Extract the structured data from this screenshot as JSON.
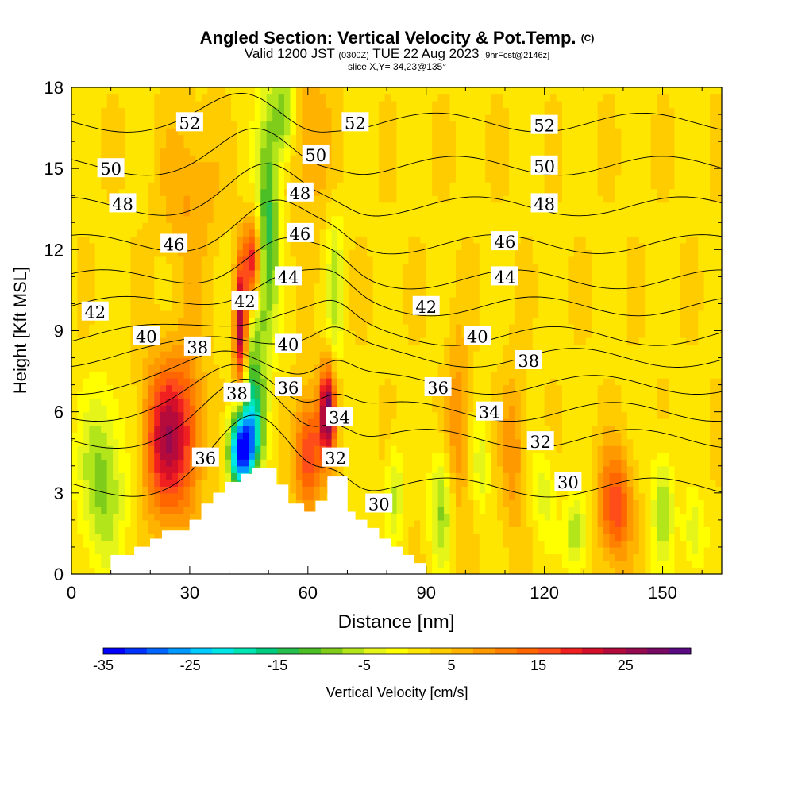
{
  "header": {
    "title_main": "Angled Section: Vertical Velocity & Pot.Temp.",
    "title_mark": "(C)",
    "subtitle_a": "Valid 1200 JST",
    "subtitle_b": "(0300Z)",
    "subtitle_c": "TUE 22 Aug 2023",
    "subtitle_d": "[9hrFcst@2146z]",
    "slice": "slice X,Y= 34,23@135°"
  },
  "chart_data": {
    "type": "heatmap",
    "xlabel": "Distance [nm]",
    "ylabel": "Height [Kft MSL]",
    "xlim": [
      0,
      165
    ],
    "ylim": [
      0,
      18
    ],
    "x_ticks": [
      0,
      30,
      60,
      90,
      120,
      150
    ],
    "y_ticks": [
      0,
      3,
      6,
      9,
      12,
      15,
      18
    ],
    "grid": false,
    "colorbar": {
      "label": "Vertical Velocity [cm/s]",
      "min": -35,
      "max": 32.5,
      "step": 2.5,
      "tick_values": [
        -35,
        -25,
        -15,
        -5,
        5,
        15,
        25
      ],
      "colors": [
        "#0000ff",
        "#0033ff",
        "#0066ff",
        "#0099ff",
        "#00ccff",
        "#00e5e5",
        "#00e5b3",
        "#00cc80",
        "#26bf4d",
        "#4dbf26",
        "#80cc1a",
        "#b3e61a",
        "#e6f519",
        "#ffff00",
        "#ffe600",
        "#ffcc00",
        "#ffb300",
        "#ff9900",
        "#ff8000",
        "#ff6600",
        "#ff4d1a",
        "#f02020",
        "#d40f2a",
        "#b40a3c",
        "#960a50",
        "#780a66",
        "#5a0a82"
      ]
    },
    "terrain_profile": [
      [
        0,
        0
      ],
      [
        10,
        0
      ],
      [
        10,
        0.7
      ],
      [
        16,
        0.7
      ],
      [
        16,
        1.0
      ],
      [
        20,
        1.0
      ],
      [
        20,
        1.3
      ],
      [
        23,
        1.3
      ],
      [
        23,
        1.6
      ],
      [
        30,
        1.6
      ],
      [
        30,
        2.0
      ],
      [
        33,
        2.0
      ],
      [
        33,
        2.6
      ],
      [
        36,
        2.6
      ],
      [
        36,
        3.0
      ],
      [
        39,
        3.0
      ],
      [
        39,
        3.4
      ],
      [
        43,
        3.4
      ],
      [
        43,
        3.7
      ],
      [
        46,
        3.7
      ],
      [
        46,
        3.9
      ],
      [
        52,
        3.9
      ],
      [
        52,
        3.3
      ],
      [
        55,
        3.3
      ],
      [
        55,
        2.6
      ],
      [
        59,
        2.6
      ],
      [
        59,
        2.3
      ],
      [
        62,
        2.3
      ],
      [
        62,
        2.7
      ],
      [
        65,
        2.7
      ],
      [
        65,
        3.6
      ],
      [
        70,
        3.6
      ],
      [
        70,
        2.3
      ],
      [
        72,
        2.3
      ],
      [
        72,
        2.0
      ],
      [
        75,
        2.0
      ],
      [
        75,
        1.7
      ],
      [
        78,
        1.7
      ],
      [
        78,
        1.3
      ],
      [
        81,
        1.3
      ],
      [
        81,
        1.0
      ],
      [
        84,
        1.0
      ],
      [
        84,
        0.7
      ],
      [
        87,
        0.7
      ],
      [
        87,
        0.4
      ],
      [
        90,
        0.4
      ],
      [
        90,
        0
      ]
    ],
    "velocity_background": 2,
    "velocity_features": [
      {
        "x": 8,
        "y": 3.5,
        "value": -11,
        "sx": 4,
        "sy": 2.2
      },
      {
        "x": 24,
        "y": 5,
        "value": 21,
        "sx": 4,
        "sy": 2.0
      },
      {
        "x": 30,
        "y": 5.5,
        "value": 8,
        "sx": 3,
        "sy": 2.5
      },
      {
        "x": 43,
        "y": 4.5,
        "value": -32,
        "sx": 2.2,
        "sy": 1.0
      },
      {
        "x": 46,
        "y": 5.5,
        "value": -14,
        "sx": 2.5,
        "sy": 1.2
      },
      {
        "x": 43,
        "y": 9.2,
        "value": 27,
        "sx": 1.2,
        "sy": 1.8
      },
      {
        "x": 46,
        "y": 11.5,
        "value": 21,
        "sx": 1.5,
        "sy": 1.2
      },
      {
        "x": 46,
        "y": 8.5,
        "value": -11,
        "sx": 2.5,
        "sy": 2.5
      },
      {
        "x": 50,
        "y": 13.5,
        "value": -15,
        "sx": 2,
        "sy": 3
      },
      {
        "x": 54,
        "y": 17,
        "value": -12,
        "sx": 2,
        "sy": 1.2
      },
      {
        "x": 60,
        "y": 16,
        "value": 6,
        "sx": 4,
        "sy": 2
      },
      {
        "x": 30,
        "y": 14,
        "value": 6,
        "sx": 5,
        "sy": 2
      },
      {
        "x": 65,
        "y": 6,
        "value": 26,
        "sx": 1.5,
        "sy": 1.2
      },
      {
        "x": 60,
        "y": 4.5,
        "value": 16,
        "sx": 2.5,
        "sy": 1.5
      },
      {
        "x": 67,
        "y": 10.5,
        "value": -8,
        "sx": 1.5,
        "sy": 2
      },
      {
        "x": 82,
        "y": 3,
        "value": -8,
        "sx": 1.5,
        "sy": 1.2
      },
      {
        "x": 94,
        "y": 2.5,
        "value": -10,
        "sx": 2,
        "sy": 1.5
      },
      {
        "x": 98,
        "y": 5.5,
        "value": 8,
        "sx": 2,
        "sy": 2.5
      },
      {
        "x": 104,
        "y": 4,
        "value": -6,
        "sx": 1.5,
        "sy": 1.2
      },
      {
        "x": 112,
        "y": 4.5,
        "value": 8,
        "sx": 2,
        "sy": 2
      },
      {
        "x": 120,
        "y": 3,
        "value": -6,
        "sx": 2,
        "sy": 1.2
      },
      {
        "x": 128,
        "y": 1.5,
        "value": -10,
        "sx": 2,
        "sy": 1
      },
      {
        "x": 138,
        "y": 2.5,
        "value": 15,
        "sx": 3,
        "sy": 1.5
      },
      {
        "x": 150,
        "y": 2.5,
        "value": -9,
        "sx": 2,
        "sy": 1.5
      },
      {
        "x": 158,
        "y": 1.5,
        "value": -7,
        "sx": 2,
        "sy": 1
      }
    ],
    "isentrope_levels": [
      {
        "value": 30,
        "y": 3.2
      },
      {
        "value": 32,
        "y": 5.0
      },
      {
        "value": 34,
        "y": 6.0
      },
      {
        "value": 36,
        "y": 7.0
      },
      {
        "value": 38,
        "y": 8.0
      },
      {
        "value": 40,
        "y": 8.8
      },
      {
        "value": 42,
        "y": 9.9
      },
      {
        "value": 44,
        "y": 10.9
      },
      {
        "value": 46,
        "y": 12.2
      },
      {
        "value": 48,
        "y": 13.6
      },
      {
        "value": 50,
        "y": 15.1
      },
      {
        "value": 52,
        "y": 16.7
      }
    ],
    "isentrope_labels": [
      {
        "text": "52",
        "x": 30,
        "y": 16.7
      },
      {
        "text": "52",
        "x": 72,
        "y": 16.7
      },
      {
        "text": "52",
        "x": 120,
        "y": 16.6
      },
      {
        "text": "50",
        "x": 10,
        "y": 15.0
      },
      {
        "text": "50",
        "x": 62,
        "y": 15.5
      },
      {
        "text": "50",
        "x": 120,
        "y": 15.1
      },
      {
        "text": "48",
        "x": 13,
        "y": 13.7
      },
      {
        "text": "48",
        "x": 58,
        "y": 14.1
      },
      {
        "text": "48",
        "x": 120,
        "y": 13.7
      },
      {
        "text": "46",
        "x": 26,
        "y": 12.2
      },
      {
        "text": "46",
        "x": 58,
        "y": 12.6
      },
      {
        "text": "46",
        "x": 110,
        "y": 12.3
      },
      {
        "text": "44",
        "x": 55,
        "y": 11.0
      },
      {
        "text": "44",
        "x": 110,
        "y": 11.0
      },
      {
        "text": "42",
        "x": 6,
        "y": 9.7
      },
      {
        "text": "42",
        "x": 44,
        "y": 10.1
      },
      {
        "text": "42",
        "x": 90,
        "y": 9.9
      },
      {
        "text": "40",
        "x": 19,
        "y": 8.8
      },
      {
        "text": "40",
        "x": 55,
        "y": 8.5
      },
      {
        "text": "40",
        "x": 103,
        "y": 8.8
      },
      {
        "text": "38",
        "x": 32,
        "y": 8.4
      },
      {
        "text": "38",
        "x": 42,
        "y": 6.7
      },
      {
        "text": "38",
        "x": 116,
        "y": 7.9
      },
      {
        "text": "36",
        "x": 34,
        "y": 4.3
      },
      {
        "text": "36",
        "x": 55,
        "y": 6.9
      },
      {
        "text": "36",
        "x": 93,
        "y": 6.9
      },
      {
        "text": "34",
        "x": 68,
        "y": 5.8
      },
      {
        "text": "34",
        "x": 106,
        "y": 6.0
      },
      {
        "text": "32",
        "x": 67,
        "y": 4.3
      },
      {
        "text": "32",
        "x": 119,
        "y": 4.9
      },
      {
        "text": "30",
        "x": 78,
        "y": 2.6
      },
      {
        "text": "30",
        "x": 126,
        "y": 3.4
      }
    ]
  }
}
